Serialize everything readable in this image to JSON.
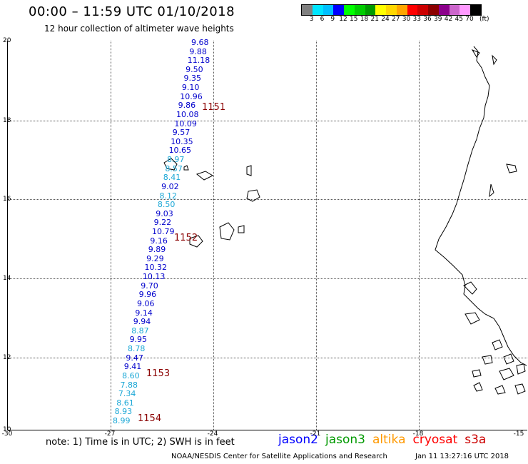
{
  "header": {
    "title": "00:00 – 11:59 UTC 01/10/2018",
    "subtitle": "12 hour collection of altimeter wave heights"
  },
  "legend": {
    "unit_label": "(ft)",
    "bins": [
      {
        "label": "3",
        "color": "#808080"
      },
      {
        "label": "6",
        "color": "#00e5ff"
      },
      {
        "label": "9",
        "color": "#00bfff"
      },
      {
        "label": "12",
        "color": "#0000ff"
      },
      {
        "label": "15",
        "color": "#00ff00"
      },
      {
        "label": "18",
        "color": "#00cc00"
      },
      {
        "label": "21",
        "color": "#009900"
      },
      {
        "label": "24",
        "color": "#ffff00"
      },
      {
        "label": "27",
        "color": "#ffd700"
      },
      {
        "label": "30",
        "color": "#ffa500"
      },
      {
        "label": "33",
        "color": "#ff0000"
      },
      {
        "label": "36",
        "color": "#cc0000"
      },
      {
        "label": "39",
        "color": "#8b0000"
      },
      {
        "label": "42",
        "color": "#8b008b"
      },
      {
        "label": "45",
        "color": "#cc66cc"
      },
      {
        "label": "70",
        "color": "#ff99ff"
      },
      {
        "label": "",
        "color": "#000000"
      }
    ]
  },
  "axes": {
    "lat_labels": [
      "20",
      "18",
      "16",
      "14",
      "12",
      "10"
    ],
    "lon_labels": [
      "-30",
      "-27",
      "-24",
      "-21",
      "-18",
      "-15"
    ]
  },
  "wave_heights": [
    {
      "text": "9.68",
      "color": "#0000cc"
    },
    {
      "text": "9.88",
      "color": "#0000cc"
    },
    {
      "text": "11.18",
      "color": "#0000cc"
    },
    {
      "text": "9.50",
      "color": "#0000cc"
    },
    {
      "text": "9.35",
      "color": "#0000cc"
    },
    {
      "text": "9.10",
      "color": "#0000cc"
    },
    {
      "text": "10.96",
      "color": "#0000cc"
    },
    {
      "text": "9.86",
      "color": "#0000cc"
    },
    {
      "text": "10.08",
      "color": "#0000cc"
    },
    {
      "text": "10.09",
      "color": "#0000cc"
    },
    {
      "text": "9.57",
      "color": "#0000cc"
    },
    {
      "text": "10.35",
      "color": "#0000cc"
    },
    {
      "text": "10.65",
      "color": "#0000cc"
    },
    {
      "text": "8.97",
      "color": "#1aa7d6"
    },
    {
      "text": "8.57",
      "color": "#1aa7d6"
    },
    {
      "text": "8.41",
      "color": "#1aa7d6"
    },
    {
      "text": "9.02",
      "color": "#0000cc"
    },
    {
      "text": "8.12",
      "color": "#1aa7d6"
    },
    {
      "text": "8.50",
      "color": "#1aa7d6"
    },
    {
      "text": "9.03",
      "color": "#0000cc"
    },
    {
      "text": "9.22",
      "color": "#0000cc"
    },
    {
      "text": "10.79",
      "color": "#0000cc"
    },
    {
      "text": "9.16",
      "color": "#0000cc"
    },
    {
      "text": "9.89",
      "color": "#0000cc"
    },
    {
      "text": "9.29",
      "color": "#0000cc"
    },
    {
      "text": "10.32",
      "color": "#0000cc"
    },
    {
      "text": "10.13",
      "color": "#0000cc"
    },
    {
      "text": "9.70",
      "color": "#0000cc"
    },
    {
      "text": "9.96",
      "color": "#0000cc"
    },
    {
      "text": "9.06",
      "color": "#0000cc"
    },
    {
      "text": "9.14",
      "color": "#0000cc"
    },
    {
      "text": "9.94",
      "color": "#0000cc"
    },
    {
      "text": "8.87",
      "color": "#1aa7d6"
    },
    {
      "text": "9.95",
      "color": "#0000cc"
    },
    {
      "text": "8.78",
      "color": "#1aa7d6"
    },
    {
      "text": "9.47",
      "color": "#0000cc"
    },
    {
      "text": "9.41",
      "color": "#0000cc"
    },
    {
      "text": "8.60",
      "color": "#1aa7d6"
    },
    {
      "text": "7.88",
      "color": "#1aa7d6"
    },
    {
      "text": "7.34",
      "color": "#1aa7d6"
    },
    {
      "text": "8.61",
      "color": "#1aa7d6"
    },
    {
      "text": "8.93",
      "color": "#1aa7d6"
    },
    {
      "text": "8.99",
      "color": "#1aa7d6"
    }
  ],
  "pass_times": [
    "1151",
    "1152",
    "1153",
    "1154"
  ],
  "footer": {
    "note": "note:  1) Time is in UTC;  2) SWH is in feet",
    "satellites": [
      {
        "name": "jason2",
        "color": "#0000ff"
      },
      {
        "name": "jason3",
        "color": "#009900"
      },
      {
        "name": "altika",
        "color": "#ff9900"
      },
      {
        "name": "cryosat",
        "color": "#ff0000"
      },
      {
        "name": "s3a",
        "color": "#cc0000"
      }
    ],
    "credit": "NOAA/NESDIS Center for Satellite Applications and Research",
    "timestamp": "Jan 11 13:27:16 UTC 2018"
  }
}
